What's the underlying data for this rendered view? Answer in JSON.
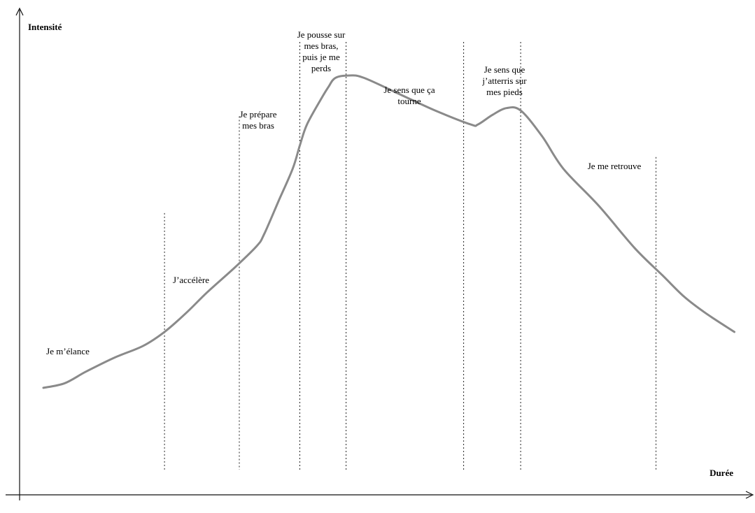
{
  "chart_data": {
    "type": "line",
    "title": "",
    "xlabel": "Durée",
    "ylabel": "Intensité",
    "xlim": [
      0,
      100
    ],
    "ylim": [
      0,
      100
    ],
    "grid": false,
    "series": [
      {
        "x": [
          0,
          3,
          6,
          10,
          14,
          17,
          20,
          23,
          27,
          30,
          31,
          33,
          35,
          36,
          37,
          39,
          40,
          41,
          43,
          45,
          50,
          55,
          60,
          61,
          63,
          65,
          67,
          70,
          73,
          78,
          83,
          87,
          90,
          93,
          97
        ],
        "y": [
          21,
          22,
          24.5,
          27.5,
          30,
          33,
          37,
          41.5,
          47,
          51.5,
          54,
          61,
          68,
          73,
          77.5,
          83,
          85.5,
          87.5,
          88,
          87.5,
          84,
          80.5,
          77.5,
          77.5,
          79.5,
          81,
          80.5,
          75,
          68,
          60,
          51,
          45,
          40.5,
          37,
          33
        ]
      }
    ],
    "dividers": [
      17,
      27.5,
      36,
      42.5,
      59,
      67,
      86
    ],
    "phases": [
      {
        "lines": [
          "Je m’élance"
        ]
      },
      {
        "lines": [
          "J’accélère"
        ]
      },
      {
        "lines": [
          "Je prépare",
          "mes bras"
        ]
      },
      {
        "lines": [
          "Je pousse sur",
          "mes bras,",
          "puis je me",
          "perds"
        ]
      },
      {
        "lines": [
          "Je sens que ça",
          "tourne"
        ]
      },
      {
        "lines": [
          "Je sens que",
          "j’atterris sur",
          "mes pieds"
        ]
      },
      {
        "lines": [
          "Je me retrouve"
        ]
      }
    ]
  }
}
